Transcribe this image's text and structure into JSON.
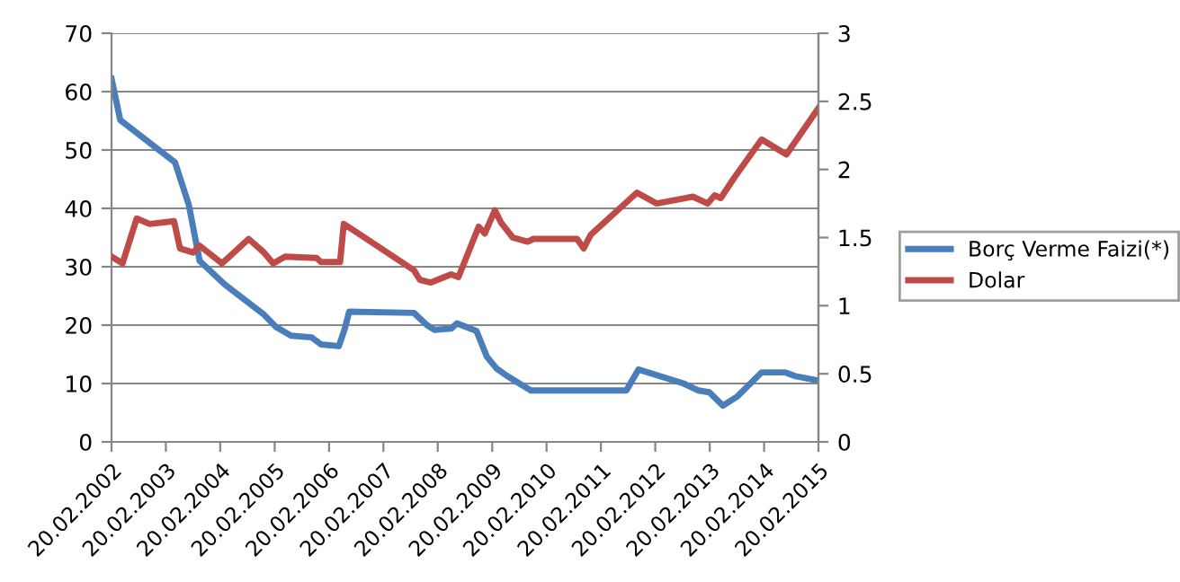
{
  "chart_data": {
    "type": "line",
    "xlim": [
      "2002-02-20",
      "2015-02-20"
    ],
    "xticks": [
      {
        "value": "2002-02-20",
        "label": "20.02.2002"
      },
      {
        "value": "2003-02-20",
        "label": "20.02.2003"
      },
      {
        "value": "2004-02-20",
        "label": "20.02.2004"
      },
      {
        "value": "2005-02-20",
        "label": "20.02.2005"
      },
      {
        "value": "2006-02-20",
        "label": "20.02.2006"
      },
      {
        "value": "2007-02-20",
        "label": "20.02.2007"
      },
      {
        "value": "2008-02-20",
        "label": "20.02.2008"
      },
      {
        "value": "2009-02-20",
        "label": "20.02.2009"
      },
      {
        "value": "2010-02-20",
        "label": "20.02.2010"
      },
      {
        "value": "2011-02-20",
        "label": "20.02.2011"
      },
      {
        "value": "2012-02-20",
        "label": "20.02.2012"
      },
      {
        "value": "2013-02-20",
        "label": "20.02.2013"
      },
      {
        "value": "2014-02-20",
        "label": "20.02.2014"
      },
      {
        "value": "2015-02-20",
        "label": "20.02.2015"
      }
    ],
    "ylim": [
      0,
      70
    ],
    "yticks": [
      0,
      10,
      20,
      30,
      40,
      50,
      60,
      70
    ],
    "y2lim": [
      0,
      3
    ],
    "y2ticks": [
      0,
      0.5,
      1,
      1.5,
      2,
      2.5,
      3
    ],
    "grid": "y",
    "legend": "right",
    "marker": "none",
    "line_style": "solid",
    "series": [
      {
        "name": "Borç Verme Faizi(*)",
        "color": "#4a7ebb",
        "x": [
          "2002-02-20",
          "2002-04-20",
          "2003-04-22",
          "2003-07-23",
          "2003-08-15",
          "2003-10-05",
          "2004-03-20",
          "2004-12-10",
          "2005-02-28",
          "2005-06-10",
          "2005-10-27",
          "2005-12-28",
          "2006-04-27",
          "2006-06-06",
          "2006-07-05",
          "2007-09-13",
          "2007-12-10",
          "2008-01-30",
          "2008-05-20",
          "2008-06-28",
          "2008-11-06",
          "2009-01-15",
          "2009-03-20",
          "2009-05-30",
          "2009-11-06",
          "2011-08-10",
          "2011-10-30",
          "2012-08-29",
          "2012-12-06",
          "2013-02-17",
          "2013-05-20",
          "2013-08-25",
          "2014-02-03",
          "2014-07-13",
          "2014-09-13",
          "2015-02-20"
        ],
        "values": [
          62.2,
          55.1,
          47.9,
          40.7,
          37.7,
          31.0,
          27.0,
          21.8,
          19.7,
          18.2,
          17.9,
          16.7,
          16.4,
          19.4,
          22.3,
          22.1,
          20.0,
          19.2,
          19.4,
          20.3,
          19.0,
          14.6,
          12.6,
          11.3,
          8.8,
          8.8,
          12.4,
          10.0,
          8.8,
          8.5,
          6.2,
          7.8,
          11.9,
          11.9,
          11.3,
          10.5
        ]
      },
      {
        "name": "Dolar",
        "color": "#be4b48",
        "axis": "y2",
        "x": [
          "2002-02-20",
          "2002-05-05",
          "2002-08-08",
          "2002-11-03",
          "2003-04-16",
          "2003-05-26",
          "2003-08-22",
          "2003-10-05",
          "2004-03-03",
          "2004-08-29",
          "2004-12-10",
          "2005-02-10",
          "2005-05-01",
          "2005-11-28",
          "2005-12-28",
          "2006-05-05",
          "2006-05-30",
          "2006-08-08",
          "2007-09-13",
          "2007-10-23",
          "2008-01-05",
          "2008-05-20",
          "2008-07-08",
          "2008-11-21",
          "2009-01-01",
          "2009-03-10",
          "2009-04-20",
          "2009-07-08",
          "2009-10-16",
          "2009-11-24",
          "2010-09-13",
          "2010-10-27",
          "2010-12-13",
          "2011-10-20",
          "2012-02-28",
          "2012-10-30",
          "2013-02-06",
          "2013-03-25",
          "2013-05-05",
          "2013-08-04",
          "2014-02-03",
          "2014-07-20",
          "2015-02-20"
        ],
        "values": [
          1.36,
          1.31,
          1.64,
          1.6,
          1.62,
          1.42,
          1.39,
          1.44,
          1.31,
          1.49,
          1.39,
          1.31,
          1.36,
          1.35,
          1.32,
          1.32,
          1.6,
          1.55,
          1.26,
          1.19,
          1.17,
          1.23,
          1.21,
          1.58,
          1.53,
          1.7,
          1.61,
          1.5,
          1.47,
          1.49,
          1.49,
          1.42,
          1.52,
          1.83,
          1.75,
          1.8,
          1.75,
          1.81,
          1.79,
          1.94,
          2.22,
          2.11,
          2.45
        ]
      }
    ]
  }
}
